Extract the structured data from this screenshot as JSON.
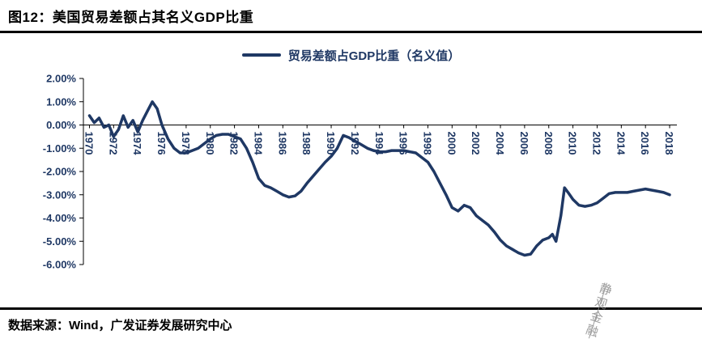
{
  "header": {
    "title": "图12：美国贸易差额占其名义GDP比重"
  },
  "legend": {
    "label": "贸易差额占GDP比重（名义值）"
  },
  "footer": {
    "source": "数据来源：Wind，广发证券发展研究中心"
  },
  "watermark": "静观金融",
  "colors": {
    "line": "#1F3864",
    "axis_text": "#1F3864",
    "axis_line": "#000000",
    "watermark": "#8a8a8a"
  },
  "chart_data": {
    "type": "line",
    "title": "",
    "xlabel": "",
    "ylabel": "",
    "grid": false,
    "legend_position": "top",
    "ylim": [
      -6,
      2
    ],
    "xlim": [
      1969.5,
      2018.6
    ],
    "y_ticks": [
      {
        "value": 2,
        "label": "2.00%"
      },
      {
        "value": 1,
        "label": "1.00%"
      },
      {
        "value": 0,
        "label": "0.00%"
      },
      {
        "value": -1,
        "label": "-1.00%"
      },
      {
        "value": -2,
        "label": "-2.00%"
      },
      {
        "value": -3,
        "label": "-3.00%"
      },
      {
        "value": -4,
        "label": "-4.00%"
      },
      {
        "value": -5,
        "label": "-5.00%"
      },
      {
        "value": -6,
        "label": "-6.00%"
      }
    ],
    "x_ticks": [
      1970,
      1972,
      1974,
      1976,
      1978,
      1980,
      1982,
      1984,
      1986,
      1988,
      1990,
      1992,
      1994,
      1996,
      1998,
      2000,
      2002,
      2004,
      2006,
      2008,
      2010,
      2012,
      2014,
      2016,
      2018
    ],
    "series": [
      {
        "name": "贸易差额占GDP比重（名义值）",
        "x": [
          1970,
          1970.4,
          1970.8,
          1971.2,
          1971.6,
          1972,
          1972.4,
          1972.8,
          1973.2,
          1973.6,
          1974,
          1974.4,
          1974.8,
          1975.2,
          1975.6,
          1976,
          1976.5,
          1977,
          1977.5,
          1978,
          1978.5,
          1979,
          1979.5,
          1980,
          1980.5,
          1981,
          1981.5,
          1982,
          1982.5,
          1983,
          1983.5,
          1984,
          1984.5,
          1985,
          1985.5,
          1986,
          1986.5,
          1987,
          1987.5,
          1988,
          1988.5,
          1989,
          1989.5,
          1990,
          1990.5,
          1991,
          1991.5,
          1992,
          1992.5,
          1993,
          1993.5,
          1994,
          1994.5,
          1995,
          1995.5,
          1996,
          1996.5,
          1997,
          1997.5,
          1998,
          1998.5,
          1999,
          1999.5,
          2000,
          2000.5,
          2001,
          2001.5,
          2002,
          2002.5,
          2003,
          2003.5,
          2004,
          2004.5,
          2005,
          2005.5,
          2006,
          2006.5,
          2007,
          2007.5,
          2008,
          2008.3,
          2008.6,
          2009,
          2009.3,
          2009.6,
          2010,
          2010.5,
          2011,
          2011.5,
          2012,
          2012.5,
          2013,
          2013.5,
          2014,
          2014.5,
          2015,
          2015.5,
          2016,
          2016.5,
          2017,
          2017.5,
          2018
        ],
        "values": [
          0.4,
          0.1,
          0.3,
          -0.1,
          0.0,
          -0.5,
          -0.2,
          0.4,
          -0.1,
          0.2,
          -0.3,
          0.2,
          0.6,
          1.0,
          0.7,
          0.0,
          -0.6,
          -1.0,
          -1.2,
          -1.2,
          -1.1,
          -1.0,
          -0.8,
          -0.6,
          -0.45,
          -0.4,
          -0.4,
          -0.5,
          -0.6,
          -1.0,
          -1.6,
          -2.3,
          -2.6,
          -2.7,
          -2.85,
          -3.0,
          -3.1,
          -3.05,
          -2.85,
          -2.5,
          -2.2,
          -1.9,
          -1.6,
          -1.35,
          -1.0,
          -0.45,
          -0.55,
          -0.7,
          -0.85,
          -1.0,
          -1.1,
          -1.15,
          -1.15,
          -1.1,
          -1.1,
          -1.1,
          -1.15,
          -1.2,
          -1.4,
          -1.6,
          -2.0,
          -2.5,
          -3.0,
          -3.55,
          -3.7,
          -3.45,
          -3.55,
          -3.9,
          -4.1,
          -4.3,
          -4.6,
          -4.95,
          -5.2,
          -5.35,
          -5.5,
          -5.6,
          -5.55,
          -5.2,
          -4.95,
          -4.85,
          -4.7,
          -5.0,
          -3.9,
          -2.7,
          -2.9,
          -3.2,
          -3.45,
          -3.5,
          -3.45,
          -3.35,
          -3.15,
          -2.95,
          -2.9,
          -2.9,
          -2.9,
          -2.85,
          -2.8,
          -2.75,
          -2.8,
          -2.85,
          -2.9,
          -3.0
        ]
      }
    ]
  }
}
